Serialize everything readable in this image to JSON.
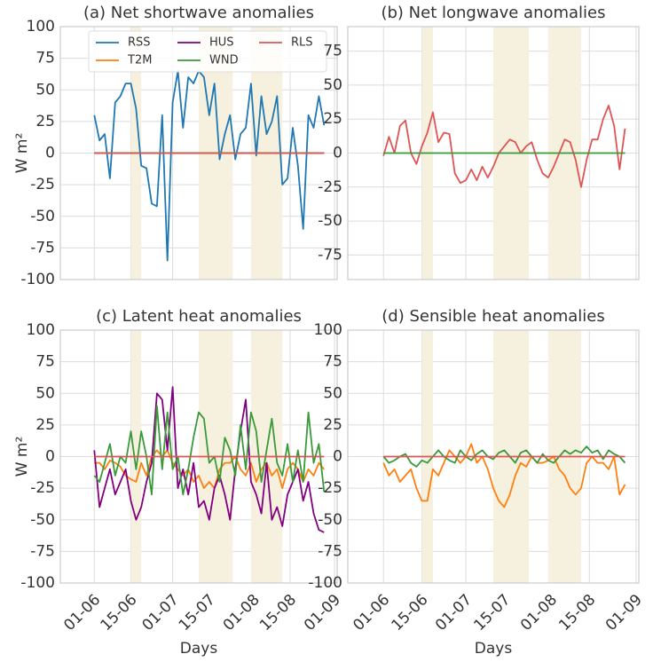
{
  "chart_data": [
    {
      "type": "line",
      "title": "(a) Net shortwave anomalies",
      "ylabel": "W m²",
      "legend": true,
      "x": [
        0,
        2,
        4,
        6,
        8,
        10,
        12,
        14,
        16,
        18,
        20,
        22,
        24,
        26,
        28,
        30,
        32,
        34,
        36,
        38,
        40,
        42,
        44,
        46,
        48,
        50,
        52,
        54,
        56,
        58,
        60,
        62,
        64,
        66,
        68,
        70,
        72,
        74,
        76,
        78,
        80,
        82,
        84,
        86,
        88
      ],
      "xlim": [
        -13,
        93
      ],
      "xticks": [
        0,
        14,
        30,
        44,
        61,
        75,
        92
      ],
      "xtick_labels": false,
      "ylim": [
        -100,
        100
      ],
      "yticks": [
        -100,
        -75,
        -50,
        -25,
        0,
        25,
        50,
        75,
        100
      ],
      "shaded_spans": [
        [
          14,
          18
        ],
        [
          40,
          53
        ],
        [
          60,
          72
        ]
      ],
      "shade_color": "#f6f1df",
      "series": [
        {
          "name": "RSS",
          "color": "#1f77b4",
          "values": [
            30,
            10,
            15,
            -20,
            40,
            45,
            55,
            55,
            35,
            -10,
            -12,
            -40,
            -42,
            30,
            -85,
            40,
            65,
            20,
            60,
            55,
            65,
            60,
            30,
            55,
            -5,
            15,
            30,
            -5,
            15,
            20,
            55,
            -2,
            45,
            15,
            25,
            45,
            -25,
            -20,
            20,
            -10,
            -60,
            30,
            20,
            45,
            22
          ]
        },
        {
          "name": "T2M",
          "color": "#ff7f0e",
          "values": [
            0,
            0,
            0,
            0,
            0,
            0,
            0,
            0,
            0,
            0,
            0,
            0,
            0,
            0,
            0,
            0,
            0,
            0,
            0,
            0,
            0,
            0,
            0,
            0,
            0,
            0,
            0,
            0,
            0,
            0,
            0,
            0,
            0,
            0,
            0,
            0,
            0,
            0,
            0,
            0,
            0,
            0,
            0,
            0,
            0
          ]
        },
        {
          "name": "HUS",
          "color": "#800080",
          "values": [
            0,
            0,
            0,
            0,
            0,
            0,
            0,
            0,
            0,
            0,
            0,
            0,
            0,
            0,
            0,
            0,
            0,
            0,
            0,
            0,
            0,
            0,
            0,
            0,
            0,
            0,
            0,
            0,
            0,
            0,
            0,
            0,
            0,
            0,
            0,
            0,
            0,
            0,
            0,
            0,
            0,
            0,
            0,
            0,
            0
          ]
        },
        {
          "name": "WND",
          "color": "#3a9a3a",
          "values": [
            0,
            0,
            0,
            0,
            0,
            0,
            0,
            0,
            0,
            0,
            0,
            0,
            0,
            0,
            0,
            0,
            0,
            0,
            0,
            0,
            0,
            0,
            0,
            0,
            0,
            0,
            0,
            0,
            0,
            0,
            0,
            0,
            0,
            0,
            0,
            0,
            0,
            0,
            0,
            0,
            0,
            0,
            0,
            0,
            0
          ]
        },
        {
          "name": "RLS",
          "color": "#dd5555",
          "values": [
            0,
            0,
            0,
            0,
            0,
            0,
            0,
            0,
            0,
            0,
            0,
            0,
            0,
            0,
            0,
            0,
            0,
            0,
            0,
            0,
            0,
            0,
            0,
            0,
            0,
            0,
            0,
            0,
            0,
            0,
            0,
            0,
            0,
            0,
            0,
            0,
            0,
            0,
            0,
            0,
            0,
            0,
            0,
            0,
            0
          ]
        }
      ]
    },
    {
      "type": "line",
      "title": "(b) Net longwave anomalies",
      "legend": false,
      "x": [
        0,
        2,
        4,
        6,
        8,
        10,
        12,
        14,
        16,
        18,
        20,
        22,
        24,
        26,
        28,
        30,
        32,
        34,
        36,
        38,
        40,
        42,
        44,
        46,
        48,
        50,
        52,
        54,
        56,
        58,
        60,
        62,
        64,
        66,
        68,
        70,
        72,
        74,
        76,
        78,
        80,
        82,
        84,
        86,
        88
      ],
      "xlim": [
        -13,
        93
      ],
      "xticks": [
        0,
        14,
        30,
        44,
        61,
        75,
        92
      ],
      "xtick_labels": false,
      "ylim": [
        -93,
        93
      ],
      "yticks": [
        -75,
        -50,
        -25,
        0,
        25,
        50,
        75
      ],
      "shaded_spans": [
        [
          14,
          18
        ],
        [
          40,
          53
        ],
        [
          60,
          72
        ]
      ],
      "shade_color": "#f6f1df",
      "series": [
        {
          "name": "RLS",
          "color": "#dd5555",
          "values": [
            -2,
            12,
            0,
            20,
            24,
            0,
            -8,
            5,
            15,
            30,
            8,
            15,
            14,
            -15,
            -22,
            -20,
            -12,
            -20,
            -10,
            -18,
            -10,
            0,
            5,
            10,
            8,
            0,
            5,
            8,
            -5,
            -15,
            -18,
            -10,
            0,
            10,
            8,
            -5,
            -25,
            -5,
            10,
            10,
            25,
            35,
            20,
            -12,
            18
          ]
        },
        {
          "name": "WND",
          "color": "#3a9a3a",
          "values": [
            0,
            0,
            0,
            0,
            0,
            0,
            0,
            0,
            0,
            0,
            0,
            0,
            0,
            0,
            0,
            0,
            0,
            0,
            0,
            0,
            0,
            0,
            0,
            0,
            0,
            0,
            0,
            0,
            0,
            0,
            0,
            0,
            0,
            0,
            0,
            0,
            0,
            0,
            0,
            0,
            0,
            0,
            0,
            0,
            0
          ]
        }
      ]
    },
    {
      "type": "line",
      "title": "(c) Latent heat anomalies",
      "ylabel": "W m²",
      "xlabel": "Days",
      "legend": false,
      "x": [
        0,
        2,
        4,
        6,
        8,
        10,
        12,
        14,
        16,
        18,
        20,
        22,
        24,
        26,
        28,
        30,
        32,
        34,
        36,
        38,
        40,
        42,
        44,
        46,
        48,
        50,
        52,
        54,
        56,
        58,
        60,
        62,
        64,
        66,
        68,
        70,
        72,
        74,
        76,
        78,
        80,
        82,
        84,
        86,
        88
      ],
      "xlim": [
        -13,
        93
      ],
      "xticks": [
        {
          "value": 0,
          "label": "01-06"
        },
        {
          "value": 14,
          "label": "15-06"
        },
        {
          "value": 30,
          "label": "01-07"
        },
        {
          "value": 44,
          "label": "15-07"
        },
        {
          "value": 61,
          "label": "01-08"
        },
        {
          "value": 75,
          "label": "15-08"
        },
        {
          "value": 92,
          "label": "01-09"
        }
      ],
      "xtick_labels": true,
      "ylim": [
        -100,
        100
      ],
      "yticks": [
        -100,
        -75,
        -50,
        -25,
        0,
        25,
        50,
        75,
        100
      ],
      "shaded_spans": [
        [
          14,
          18
        ],
        [
          40,
          53
        ],
        [
          60,
          72
        ]
      ],
      "shade_color": "#f6f1df",
      "series": [
        {
          "name": "T2M",
          "color": "#ff7f0e",
          "values": [
            -5,
            -5,
            -10,
            -3,
            -5,
            -8,
            -15,
            -18,
            -20,
            -5,
            -15,
            0,
            5,
            0,
            5,
            -5,
            -10,
            -15,
            -10,
            -20,
            -15,
            -25,
            -20,
            -25,
            -10,
            -5,
            -5,
            0,
            -10,
            -15,
            -5,
            -20,
            -10,
            -5,
            -15,
            -10,
            -25,
            -10,
            -5,
            -10,
            -20,
            -10,
            -15,
            -5,
            -10
          ]
        },
        {
          "name": "HUS",
          "color": "#800080",
          "values": [
            5,
            -40,
            -25,
            -10,
            -30,
            -20,
            -10,
            -35,
            -50,
            -40,
            -20,
            -5,
            50,
            45,
            5,
            55,
            -25,
            -10,
            -30,
            -5,
            -40,
            -35,
            -50,
            -25,
            -15,
            -30,
            -50,
            -10,
            20,
            45,
            -20,
            -30,
            -45,
            -5,
            -50,
            -40,
            -55,
            -30,
            -20,
            -10,
            -35,
            -20,
            -45,
            -58,
            -60
          ]
        },
        {
          "name": "WND",
          "color": "#3a9a3a",
          "values": [
            -15,
            -20,
            -5,
            10,
            -15,
            0,
            -5,
            20,
            -10,
            20,
            0,
            -30,
            40,
            -10,
            35,
            -10,
            0,
            -30,
            -10,
            15,
            35,
            30,
            -5,
            0,
            -20,
            15,
            5,
            -15,
            25,
            -10,
            35,
            20,
            -20,
            5,
            30,
            -5,
            -15,
            10,
            -20,
            5,
            -20,
            35,
            -5,
            10,
            -28
          ]
        },
        {
          "name": "RLS",
          "color": "#dd5555",
          "values": [
            0,
            0,
            0,
            0,
            0,
            0,
            0,
            0,
            0,
            0,
            0,
            0,
            0,
            0,
            0,
            0,
            0,
            0,
            0,
            0,
            0,
            0,
            0,
            0,
            0,
            0,
            0,
            0,
            0,
            0,
            0,
            0,
            0,
            0,
            0,
            0,
            0,
            0,
            0,
            0,
            0,
            0,
            0,
            0,
            0
          ]
        }
      ]
    },
    {
      "type": "line",
      "title": "(d) Sensible heat anomalies",
      "xlabel": "Days",
      "legend": false,
      "x": [
        0,
        2,
        4,
        6,
        8,
        10,
        12,
        14,
        16,
        18,
        20,
        22,
        24,
        26,
        28,
        30,
        32,
        34,
        36,
        38,
        40,
        42,
        44,
        46,
        48,
        50,
        52,
        54,
        56,
        58,
        60,
        62,
        64,
        66,
        68,
        70,
        72,
        74,
        76,
        78,
        80,
        82,
        84,
        86,
        88
      ],
      "xlim": [
        -13,
        93
      ],
      "xticks": [
        {
          "value": 0,
          "label": "01-06"
        },
        {
          "value": 14,
          "label": "15-06"
        },
        {
          "value": 30,
          "label": "01-07"
        },
        {
          "value": 44,
          "label": "15-07"
        },
        {
          "value": 61,
          "label": "01-08"
        },
        {
          "value": 75,
          "label": "15-08"
        },
        {
          "value": 92,
          "label": "01-09"
        }
      ],
      "xtick_labels": true,
      "ylim": [
        -100,
        100
      ],
      "yticks": [
        -100,
        -75,
        -50,
        -25,
        0,
        25,
        50,
        75,
        100
      ],
      "shaded_spans": [
        [
          14,
          18
        ],
        [
          40,
          53
        ],
        [
          60,
          72
        ]
      ],
      "shade_color": "#f6f1df",
      "series": [
        {
          "name": "T2M",
          "color": "#ff7f0e",
          "values": [
            -5,
            -15,
            -10,
            -20,
            -15,
            -10,
            -25,
            -35,
            -35,
            -10,
            -15,
            -5,
            5,
            0,
            -5,
            0,
            10,
            -5,
            0,
            -10,
            -25,
            -35,
            -40,
            -30,
            -15,
            -5,
            -8,
            0,
            -5,
            -5,
            -3,
            0,
            -10,
            -15,
            -25,
            -30,
            -25,
            -5,
            0,
            -5,
            -5,
            -10,
            0,
            -30,
            -22
          ]
        },
        {
          "name": "WND",
          "color": "#3a9a3a",
          "values": [
            0,
            -5,
            -3,
            0,
            2,
            -5,
            -8,
            -3,
            -5,
            0,
            5,
            0,
            -3,
            -5,
            5,
            0,
            -3,
            2,
            5,
            0,
            -2,
            3,
            5,
            0,
            -5,
            3,
            5,
            0,
            -5,
            2,
            -3,
            -5,
            0,
            5,
            2,
            5,
            3,
            8,
            3,
            5,
            -2,
            5,
            2,
            0,
            -5
          ]
        },
        {
          "name": "RLS",
          "color": "#dd5555",
          "values": [
            0,
            0,
            0,
            0,
            0,
            0,
            0,
            0,
            0,
            0,
            0,
            0,
            0,
            0,
            0,
            0,
            0,
            0,
            0,
            0,
            0,
            0,
            0,
            0,
            0,
            0,
            0,
            0,
            0,
            0,
            0,
            0,
            0,
            0,
            0,
            0,
            0,
            0,
            0,
            0,
            0,
            0,
            0,
            0,
            0
          ]
        }
      ]
    }
  ]
}
